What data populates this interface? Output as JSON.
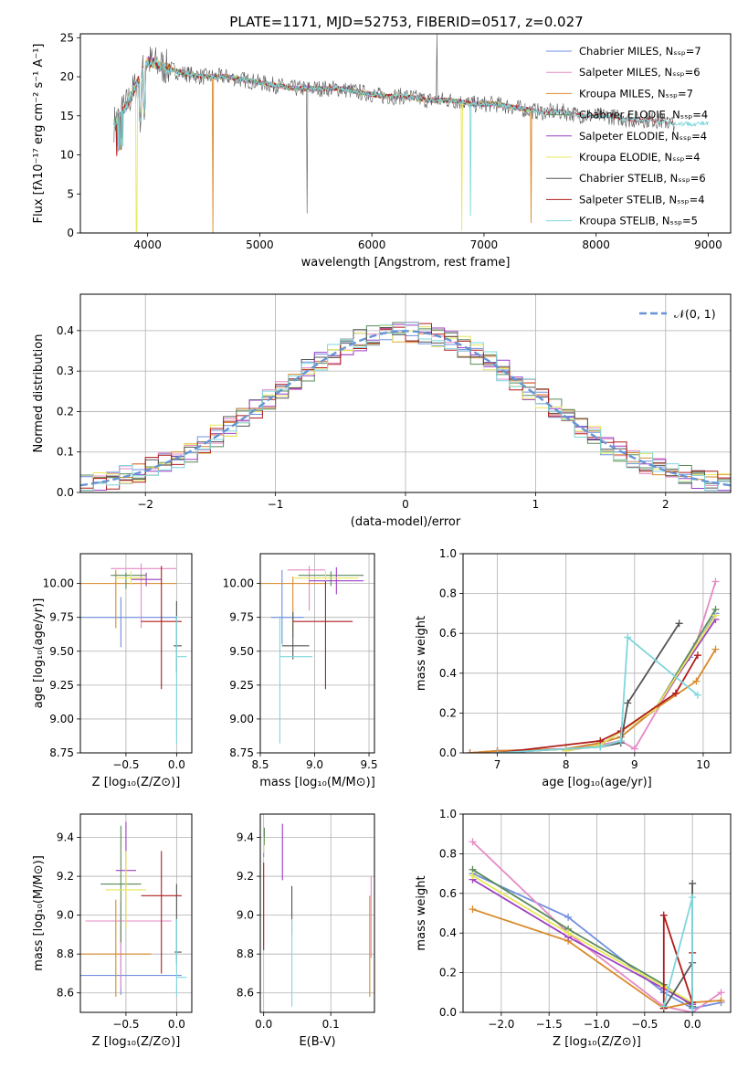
{
  "title": "PLATE=1171, MJD=52753, FIBERID=0517, z=0.027",
  "colors": {
    "chabrier_miles": "#6f8fe0",
    "salpeter_miles": "#e58ac6",
    "kroupa_miles": "#d98a2a",
    "chabrier_elodie": "#5a8a5a",
    "salpeter_elodie": "#9c3fc4",
    "kroupa_elodie": "#e8e85a",
    "chabrier_stelib": "#555555",
    "salpeter_stelib": "#b01c1c",
    "kroupa_stelib": "#7fd6dc",
    "normal_curve": "#6495d4"
  },
  "chart_data": [
    {
      "id": "spectrum",
      "type": "line",
      "xlabel": "wavelength [Angstrom, rest frame]",
      "ylabel": "Flux [fλ10⁻¹⁷ erg cm⁻² s⁻¹ A⁻¹]",
      "xlim": [
        3400,
        9200
      ],
      "ylim": [
        0,
        25.5
      ],
      "xticks": [
        "4000",
        "5000",
        "6000",
        "7000",
        "8000",
        "9000"
      ],
      "yticks": [
        "0",
        "5",
        "10",
        "15",
        "20",
        "25"
      ],
      "legend_position": "top-right",
      "legend": [
        "Chabrier MILES, Nₛₛₚ=7",
        "Salpeter MILES, Nₛₛₚ=6",
        "Kroupa MILES, Nₛₛₚ=7",
        "Chabrier ELODIE, Nₛₛₚ=4",
        "Salpeter ELODIE, Nₛₛₚ=4",
        "Kroupa ELODIE, Nₛₛₚ=4",
        "Chabrier STELIB, Nₛₛₚ=6",
        "Salpeter STELIB, Nₛₛₚ=4",
        "Kroupa STELIB, Nₛₛₚ=5"
      ],
      "x": [
        3700,
        3800,
        3900,
        4000,
        4100,
        4300,
        4500,
        4700,
        4900,
        5100,
        5300,
        5500,
        5700,
        5900,
        6100,
        6300,
        6500,
        6700,
        6900,
        7100,
        7300,
        7500,
        7700,
        7900,
        8100,
        8300,
        8500,
        8700,
        8900
      ],
      "y": [
        14,
        16,
        19,
        22,
        21.5,
        20.5,
        20,
        20,
        19.5,
        19,
        18.5,
        18.5,
        18.5,
        18,
        17.5,
        17.5,
        17,
        17,
        16.5,
        16.5,
        16,
        15.5,
        15.5,
        15,
        15,
        14.5,
        14.5,
        14,
        14
      ]
    },
    {
      "id": "residuals",
      "type": "line",
      "xlabel": "(data-model)/error",
      "ylabel": "Normed distribution",
      "xlim": [
        -2.5,
        2.5
      ],
      "ylim": [
        0,
        0.49
      ],
      "xticks": [
        "−2",
        "−1",
        "0",
        "1",
        "2"
      ],
      "yticks": [
        "0.0",
        "0.1",
        "0.2",
        "0.3",
        "0.4"
      ],
      "legend_position": "top-right",
      "legend": [
        "𝒩(0, 1)"
      ],
      "series_order": [
        "chabrier_miles",
        "salpeter_miles",
        "kroupa_miles",
        "chabrier_elodie",
        "salpeter_elodie",
        "kroupa_elodie",
        "chabrier_stelib",
        "salpeter_stelib",
        "kroupa_stelib"
      ]
    },
    {
      "id": "age_vs_Z",
      "type": "scatter",
      "xlabel": "Z [log₁₀(Z/Z⊙)]",
      "ylabel": "age  [log₁₀(age/yr)]",
      "xlim": [
        -0.95,
        0.15
      ],
      "ylim": [
        8.75,
        10.22
      ],
      "xticks": [
        "−0.5",
        "0.0"
      ],
      "yticks": [
        "8.75",
        "9.00",
        "9.25",
        "9.50",
        "9.75",
        "10.00"
      ],
      "points": [
        {
          "series": "chabrier_miles",
          "x": -0.55,
          "y": 9.75,
          "xerr": [
            0.4,
            0.55
          ],
          "yerr": [
            0.22,
            0.15
          ]
        },
        {
          "series": "salpeter_miles",
          "x": -0.35,
          "y": 10.11,
          "xerr": [
            0.3,
            0.35
          ],
          "yerr": [
            0.44,
            0.04
          ]
        },
        {
          "series": "kroupa_miles",
          "x": -0.6,
          "y": 10.0,
          "xerr": [
            0.35,
            0.6
          ],
          "yerr": [
            0.33,
            0.1
          ]
        },
        {
          "series": "chabrier_elodie",
          "x": -0.5,
          "y": 10.06,
          "xerr": [
            0.15,
            0.2
          ],
          "yerr": [
            0.1,
            0.02
          ]
        },
        {
          "series": "salpeter_elodie",
          "x": -0.3,
          "y": 10.03,
          "xerr": [
            0.15,
            0.15
          ],
          "yerr": [
            0.05,
            0.05
          ]
        },
        {
          "series": "kroupa_elodie",
          "x": -0.45,
          "y": 10.04,
          "xerr": [
            0.15,
            0.15
          ],
          "yerr": [
            0.05,
            0.05
          ]
        },
        {
          "series": "chabrier_stelib",
          "x": 0.0,
          "y": 9.54,
          "xerr": [
            0.03,
            0.05
          ],
          "yerr": [
            0.2,
            0.33
          ]
        },
        {
          "series": "salpeter_stelib",
          "x": -0.15,
          "y": 9.72,
          "xerr": [
            0.2,
            0.2
          ],
          "yerr": [
            0.5,
            0.41
          ]
        },
        {
          "series": "kroupa_stelib",
          "x": 0.0,
          "y": 9.46,
          "xerr": [
            0.0,
            0.1
          ],
          "yerr": [
            0.64,
            0.3
          ]
        }
      ]
    },
    {
      "id": "age_vs_mass",
      "type": "scatter",
      "xlabel": "mass [log₁₀(M/M⊙)]",
      "ylabel": "",
      "xlim": [
        8.5,
        9.55
      ],
      "ylim": [
        8.75,
        10.22
      ],
      "xticks": [
        "8.5",
        "9.0",
        "9.5"
      ],
      "yticks": [
        "8.75",
        "9.00",
        "9.25",
        "9.50",
        "9.75",
        "10.00"
      ],
      "points": [
        {
          "series": "chabrier_miles",
          "x": 8.7,
          "y": 9.75,
          "xerr": [
            0.1,
            0.2
          ],
          "yerr": [
            0.2,
            0.35
          ]
        },
        {
          "series": "salpeter_miles",
          "x": 8.95,
          "y": 10.1,
          "xerr": [
            0.2,
            0.15
          ],
          "yerr": [
            0.3,
            0.03
          ]
        },
        {
          "series": "kroupa_miles",
          "x": 8.8,
          "y": 10.0,
          "xerr": [
            0.3,
            0.3
          ],
          "yerr": [
            0.4,
            0.05
          ]
        },
        {
          "series": "chabrier_elodie",
          "x": 9.15,
          "y": 10.06,
          "xerr": [
            0.3,
            0.3
          ],
          "yerr": [
            0.08,
            0.03
          ]
        },
        {
          "series": "salpeter_elodie",
          "x": 9.2,
          "y": 10.02,
          "xerr": [
            0.25,
            0.25
          ],
          "yerr": [
            0.1,
            0.1
          ]
        },
        {
          "series": "kroupa_elodie",
          "x": 9.1,
          "y": 10.04,
          "xerr": [
            0.3,
            0.3
          ],
          "yerr": [
            0.05,
            0.05
          ]
        },
        {
          "series": "chabrier_stelib",
          "x": 8.8,
          "y": 9.54,
          "xerr": [
            0.1,
            0.15
          ],
          "yerr": [
            0.1,
            0.25
          ]
        },
        {
          "series": "salpeter_stelib",
          "x": 9.1,
          "y": 9.72,
          "xerr": [
            0.3,
            0.25
          ],
          "yerr": [
            0.5,
            0.3
          ]
        },
        {
          "series": "kroupa_stelib",
          "x": 8.68,
          "y": 9.46,
          "xerr": [
            0.0,
            0.3
          ],
          "yerr": [
            0.64,
            0.3
          ]
        }
      ]
    },
    {
      "id": "weight_vs_age",
      "type": "line",
      "xlabel": "age  [log₁₀(age/yr)]",
      "ylabel": "mass weight",
      "xlim": [
        6.5,
        10.4
      ],
      "ylim": [
        0,
        1.0
      ],
      "xticks": [
        "7",
        "8",
        "9",
        "10"
      ],
      "yticks": [
        "0.0",
        "0.2",
        "0.4",
        "0.6",
        "0.8",
        "1.0"
      ],
      "series": [
        {
          "series": "chabrier_miles",
          "x": [
            6.6,
            7.0,
            8.0,
            8.5,
            8.8,
            9.3,
            9.8,
            10.18
          ],
          "y": [
            0.0,
            0.01,
            0.02,
            0.05,
            0.08,
            0.22,
            0.48,
            0.7
          ]
        },
        {
          "series": "salpeter_miles",
          "x": [
            6.6,
            7.0,
            8.0,
            8.5,
            8.8,
            9.0,
            9.9,
            10.18
          ],
          "y": [
            0.0,
            0.01,
            0.02,
            0.04,
            0.06,
            0.02,
            0.55,
            0.86
          ]
        },
        {
          "series": "kroupa_miles",
          "x": [
            6.6,
            7.0,
            8.0,
            8.5,
            8.8,
            9.3,
            9.9,
            10.18
          ],
          "y": [
            0.0,
            0.01,
            0.02,
            0.05,
            0.08,
            0.22,
            0.36,
            0.52
          ]
        },
        {
          "series": "chabrier_elodie",
          "x": [
            8.0,
            8.5,
            9.3,
            10.18
          ],
          "y": [
            0.01,
            0.04,
            0.22,
            0.72
          ]
        },
        {
          "series": "salpeter_elodie",
          "x": [
            8.0,
            8.5,
            9.3,
            10.18
          ],
          "y": [
            0.01,
            0.04,
            0.22,
            0.67
          ]
        },
        {
          "series": "kroupa_elodie",
          "x": [
            8.0,
            8.5,
            9.3,
            10.18
          ],
          "y": [
            0.01,
            0.04,
            0.22,
            0.69
          ]
        },
        {
          "series": "chabrier_stelib",
          "x": [
            7.0,
            8.5,
            8.8,
            8.9,
            9.65
          ],
          "y": [
            0.0,
            0.03,
            0.05,
            0.25,
            0.65
          ]
        },
        {
          "series": "salpeter_stelib",
          "x": [
            7.0,
            8.5,
            8.8,
            9.6,
            9.92
          ],
          "y": [
            0.0,
            0.06,
            0.11,
            0.3,
            0.49
          ]
        },
        {
          "series": "kroupa_stelib",
          "x": [
            7.0,
            8.5,
            8.8,
            8.9,
            9.92
          ],
          "y": [
            0.0,
            0.03,
            0.06,
            0.58,
            0.29
          ]
        }
      ]
    },
    {
      "id": "mass_vs_Z",
      "type": "scatter",
      "xlabel": "Z [log₁₀(Z/Z⊙)]",
      "ylabel": "mass [log₁₀(M/M⊙)]",
      "xlim": [
        -0.95,
        0.15
      ],
      "ylim": [
        8.5,
        9.52
      ],
      "xticks": [
        "−0.5",
        "0.0"
      ],
      "yticks": [
        "8.6",
        "8.8",
        "9.0",
        "9.2",
        "9.4"
      ],
      "points": [
        {
          "series": "chabrier_miles",
          "x": -0.55,
          "y": 8.69,
          "xerr": [
            0.4,
            0.6
          ],
          "yerr": [
            0.1,
            0.3
          ]
        },
        {
          "series": "salpeter_miles",
          "x": -0.55,
          "y": 8.97,
          "xerr": [
            0.35,
            0.5
          ],
          "yerr": [
            0.35,
            0.1
          ]
        },
        {
          "series": "kroupa_miles",
          "x": -0.6,
          "y": 8.8,
          "xerr": [
            0.35,
            0.35
          ],
          "yerr": [
            0.22,
            0.28
          ]
        },
        {
          "series": "chabrier_elodie",
          "x": -0.55,
          "y": 9.16,
          "xerr": [
            0.2,
            0.2
          ],
          "yerr": [
            0.3,
            0.3
          ]
        },
        {
          "series": "salpeter_elodie",
          "x": -0.5,
          "y": 9.23,
          "xerr": [
            0.1,
            0.1
          ],
          "yerr": [
            0.3,
            0.25
          ]
        },
        {
          "series": "kroupa_elodie",
          "x": -0.5,
          "y": 9.13,
          "xerr": [
            0.2,
            0.2
          ],
          "yerr": [
            0.2,
            0.2
          ]
        },
        {
          "series": "chabrier_stelib",
          "x": 0.0,
          "y": 8.81,
          "xerr": [
            0.02,
            0.05
          ],
          "yerr": [
            0.06,
            0.35
          ]
        },
        {
          "series": "salpeter_stelib",
          "x": -0.15,
          "y": 9.1,
          "xerr": [
            0.2,
            0.2
          ],
          "yerr": [
            0.4,
            0.23
          ]
        },
        {
          "series": "kroupa_stelib",
          "x": 0.0,
          "y": 8.68,
          "xerr": [
            0.0,
            0.1
          ],
          "yerr": [
            0.1,
            0.3
          ]
        }
      ]
    },
    {
      "id": "mass_vs_ebv",
      "type": "scatter",
      "xlabel": "E(B-V)",
      "ylabel": "",
      "xlim": [
        -0.005,
        0.165
      ],
      "ylim": [
        8.5,
        9.52
      ],
      "xticks": [
        "0.0",
        "0.1"
      ],
      "yticks": [
        "8.6",
        "8.8",
        "9.0",
        "9.2",
        "9.4"
      ],
      "points": [
        {
          "series": "chabrier_miles",
          "x": 0.0,
          "y": 9.35,
          "xerr": [
            0,
            0
          ],
          "yerr": [
            0.05,
            0.05
          ]
        },
        {
          "series": "salpeter_miles",
          "x": 0.16,
          "y": 8.98,
          "xerr": [
            0,
            0
          ],
          "yerr": [
            0.2,
            0.22
          ]
        },
        {
          "series": "kroupa_miles",
          "x": 0.158,
          "y": 8.85,
          "xerr": [
            0,
            0
          ],
          "yerr": [
            0.27,
            0.25
          ]
        },
        {
          "series": "chabrier_elodie",
          "x": 0.001,
          "y": 9.4,
          "xerr": [
            0,
            0
          ],
          "yerr": [
            0.04,
            0.05
          ]
        },
        {
          "series": "salpeter_elodie",
          "x": 0.028,
          "y": 9.3,
          "xerr": [
            0,
            0
          ],
          "yerr": [
            0.12,
            0.17
          ]
        },
        {
          "series": "kroupa_elodie",
          "x": 0.0,
          "y": 9.36,
          "xerr": [
            0,
            0
          ],
          "yerr": [
            0.04,
            0.04
          ]
        },
        {
          "series": "chabrier_stelib",
          "x": 0.042,
          "y": 9.05,
          "xerr": [
            0,
            0
          ],
          "yerr": [
            0.15,
            0.1
          ]
        },
        {
          "series": "salpeter_stelib",
          "x": 0.0,
          "y": 9.05,
          "xerr": [
            0,
            0
          ],
          "yerr": [
            0.23,
            0.22
          ]
        },
        {
          "series": "kroupa_stelib",
          "x": 0.042,
          "y": 8.78,
          "xerr": [
            0,
            0
          ],
          "yerr": [
            0.25,
            0.2
          ]
        }
      ]
    },
    {
      "id": "weight_vs_Z",
      "type": "line",
      "xlabel": "Z [log₁₀(Z/Z⊙)]",
      "ylabel": "mass weight",
      "xlim": [
        -2.4,
        0.4
      ],
      "ylim": [
        0,
        1.0
      ],
      "xticks": [
        "−2.0",
        "−1.5",
        "−1.0",
        "−0.5",
        "0.0"
      ],
      "yticks": [
        "0.0",
        "0.2",
        "0.4",
        "0.6",
        "0.8",
        "1.0"
      ],
      "series": [
        {
          "series": "chabrier_miles",
          "x": [
            -2.3,
            -1.3,
            -0.3,
            0.0,
            0.3
          ],
          "y": [
            0.7,
            0.48,
            0.1,
            0.02,
            0.05
          ]
        },
        {
          "series": "salpeter_miles",
          "x": [
            -2.3,
            -1.3,
            -0.3,
            0.0,
            0.3
          ],
          "y": [
            0.86,
            0.4,
            0.03,
            0.0,
            0.1
          ]
        },
        {
          "series": "kroupa_miles",
          "x": [
            -2.3,
            -1.3,
            -0.3,
            0.0,
            0.3
          ],
          "y": [
            0.52,
            0.36,
            0.02,
            0.05,
            0.06
          ]
        },
        {
          "series": "chabrier_elodie",
          "x": [
            -2.3,
            -1.3,
            -0.3,
            0.0
          ],
          "y": [
            0.72,
            0.42,
            0.14,
            0.03
          ]
        },
        {
          "series": "salpeter_elodie",
          "x": [
            -2.3,
            -1.3,
            -0.3,
            0.0
          ],
          "y": [
            0.67,
            0.38,
            0.12,
            0.04
          ]
        },
        {
          "series": "kroupa_elodie",
          "x": [
            -2.3,
            -1.3,
            -0.3,
            0.0
          ],
          "y": [
            0.69,
            0.4,
            0.13,
            0.05
          ]
        },
        {
          "series": "chabrier_stelib",
          "x": [
            -0.3,
            0.0,
            0.0,
            0.0
          ],
          "y": [
            0.02,
            0.25,
            0.65,
            0.05
          ]
        },
        {
          "series": "salpeter_stelib",
          "x": [
            -0.3,
            -0.3,
            0.0,
            0.0
          ],
          "y": [
            0.02,
            0.49,
            0.05,
            0.3
          ]
        },
        {
          "series": "kroupa_stelib",
          "x": [
            -0.3,
            0.0,
            0.0
          ],
          "y": [
            0.03,
            0.58,
            0.0
          ]
        }
      ]
    }
  ]
}
